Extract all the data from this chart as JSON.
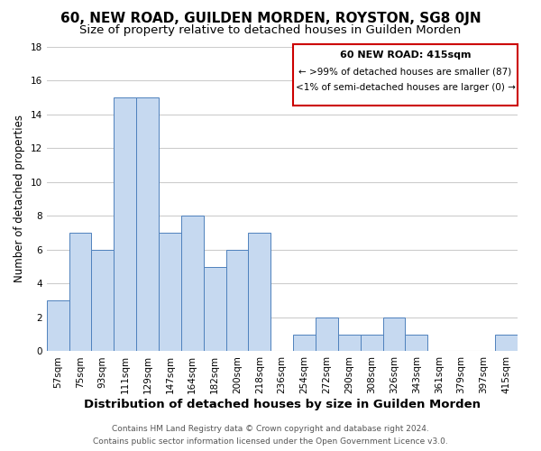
{
  "title": "60, NEW ROAD, GUILDEN MORDEN, ROYSTON, SG8 0JN",
  "subtitle": "Size of property relative to detached houses in Guilden Morden",
  "xlabel": "Distribution of detached houses by size in Guilden Morden",
  "ylabel": "Number of detached properties",
  "bin_labels": [
    "57sqm",
    "75sqm",
    "93sqm",
    "111sqm",
    "129sqm",
    "147sqm",
    "164sqm",
    "182sqm",
    "200sqm",
    "218sqm",
    "236sqm",
    "254sqm",
    "272sqm",
    "290sqm",
    "308sqm",
    "326sqm",
    "343sqm",
    "361sqm",
    "379sqm",
    "397sqm",
    "415sqm"
  ],
  "values": [
    3,
    7,
    6,
    15,
    15,
    7,
    8,
    5,
    6,
    7,
    0,
    1,
    2,
    1,
    1,
    2,
    1,
    0,
    0,
    0,
    1
  ],
  "bar_color": "#c6d9f0",
  "bar_edge_color": "#4f81bd",
  "ylim": [
    0,
    18
  ],
  "yticks": [
    0,
    2,
    4,
    6,
    8,
    10,
    12,
    14,
    16,
    18
  ],
  "grid_color": "#cccccc",
  "box_text_line1": "60 NEW ROAD: 415sqm",
  "box_text_line2": "← >99% of detached houses are smaller (87)",
  "box_text_line3": "<1% of semi-detached houses are larger (0) →",
  "box_edge_color": "#cc0000",
  "footer_line1": "Contains HM Land Registry data © Crown copyright and database right 2024.",
  "footer_line2": "Contains public sector information licensed under the Open Government Licence v3.0.",
  "title_fontsize": 11,
  "subtitle_fontsize": 9.5,
  "xlabel_fontsize": 9.5,
  "ylabel_fontsize": 8.5,
  "tick_fontsize": 7.5,
  "footer_fontsize": 6.5,
  "background_color": "#ffffff"
}
